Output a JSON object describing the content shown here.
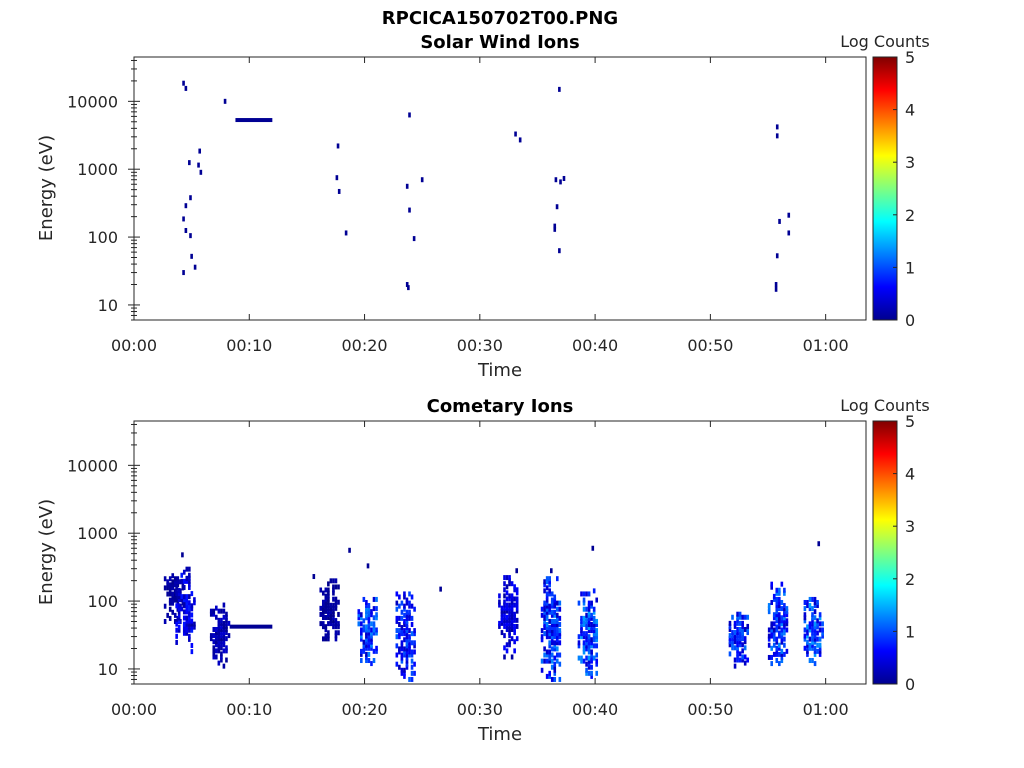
{
  "figure_title": "RPCICA150702T00.PNG",
  "chart_data": [
    {
      "type": "heatmap",
      "title": "Solar Wind Ions",
      "xlabel": "Time",
      "ylabel": "Energy (eV)",
      "xlim_minutes": [
        0,
        63.5
      ],
      "ylim": [
        6,
        45000
      ],
      "yscale": "log",
      "xticks": [
        "00:00",
        "00:10",
        "00:20",
        "00:30",
        "00:40",
        "00:50",
        "01:00"
      ],
      "yticks": [
        "10",
        "100",
        "1000",
        "10000"
      ],
      "colorbar": {
        "label": "Log Counts",
        "range": [
          0,
          5
        ],
        "ticks": [
          "0",
          "1",
          "2",
          "3",
          "4",
          "5"
        ],
        "colormap": "jet"
      },
      "cells": [
        {
          "t": 4.3,
          "e": 18500,
          "v": 0.1
        },
        {
          "t": 4.5,
          "e": 15500,
          "v": 0.1
        },
        {
          "t": 4.8,
          "e": 1250,
          "v": 0.1
        },
        {
          "t": 5.6,
          "e": 1150,
          "v": 0.1
        },
        {
          "t": 5.7,
          "e": 1850,
          "v": 0.1
        },
        {
          "t": 5.8,
          "e": 900,
          "v": 0.1
        },
        {
          "t": 4.3,
          "e": 185,
          "v": 0.1
        },
        {
          "t": 4.5,
          "e": 290,
          "v": 0.1
        },
        {
          "t": 4.9,
          "e": 380,
          "v": 0.1
        },
        {
          "t": 4.5,
          "e": 125,
          "v": 0.1
        },
        {
          "t": 4.9,
          "e": 105,
          "v": 0.1
        },
        {
          "t": 5.0,
          "e": 52,
          "v": 0.1
        },
        {
          "t": 5.3,
          "e": 36,
          "v": 0.1
        },
        {
          "t": 4.3,
          "e": 30,
          "v": 0.1
        },
        {
          "t": 7.9,
          "e": 10000,
          "v": 0.1
        },
        {
          "t": 17.7,
          "e": 2200,
          "v": 0.1
        },
        {
          "t": 17.6,
          "e": 750,
          "v": 0.1
        },
        {
          "t": 17.8,
          "e": 470,
          "v": 0.1
        },
        {
          "t": 18.4,
          "e": 115,
          "v": 0.1
        },
        {
          "t": 23.9,
          "e": 6300,
          "v": 0.1
        },
        {
          "t": 23.7,
          "e": 560,
          "v": 0.1
        },
        {
          "t": 25.0,
          "e": 700,
          "v": 0.1
        },
        {
          "t": 23.9,
          "e": 250,
          "v": 0.1
        },
        {
          "t": 24.3,
          "e": 95,
          "v": 0.1
        },
        {
          "t": 23.7,
          "e": 20,
          "v": 0.1
        },
        {
          "t": 23.8,
          "e": 18,
          "v": 0.1
        },
        {
          "t": 33.1,
          "e": 3300,
          "v": 0.1
        },
        {
          "t": 33.5,
          "e": 2700,
          "v": 0.1
        },
        {
          "t": 36.9,
          "e": 15000,
          "v": 0.1
        },
        {
          "t": 36.6,
          "e": 700,
          "v": 0.1
        },
        {
          "t": 37.0,
          "e": 650,
          "v": 0.1
        },
        {
          "t": 37.3,
          "e": 730,
          "v": 0.1
        },
        {
          "t": 36.7,
          "e": 280,
          "v": 0.1
        },
        {
          "t": 36.5,
          "e": 145,
          "v": 0.1
        },
        {
          "t": 36.5,
          "e": 130,
          "v": 0.1
        },
        {
          "t": 36.9,
          "e": 63,
          "v": 0.1
        },
        {
          "t": 55.8,
          "e": 4200,
          "v": 0.1
        },
        {
          "t": 55.8,
          "e": 3100,
          "v": 0.1
        },
        {
          "t": 56.0,
          "e": 170,
          "v": 0.1
        },
        {
          "t": 56.8,
          "e": 210,
          "v": 0.1
        },
        {
          "t": 56.8,
          "e": 115,
          "v": 0.1
        },
        {
          "t": 55.8,
          "e": 53,
          "v": 0.1
        },
        {
          "t": 55.7,
          "e": 20,
          "v": 0.1
        },
        {
          "t": 55.7,
          "e": 17,
          "v": 0.1
        }
      ],
      "bands": [
        {
          "t0": 8.8,
          "t1": 12.0,
          "e": 5300,
          "v": 0.1
        }
      ]
    },
    {
      "type": "heatmap",
      "title": "Cometary Ions",
      "xlabel": "Time",
      "ylabel": "Energy (eV)",
      "xlim_minutes": [
        0,
        63.5
      ],
      "ylim": [
        6,
        45000
      ],
      "yscale": "log",
      "xticks": [
        "00:00",
        "00:10",
        "00:20",
        "00:30",
        "00:40",
        "00:50",
        "01:00"
      ],
      "yticks": [
        "10",
        "100",
        "1000",
        "10000"
      ],
      "colorbar": {
        "label": "Log Counts",
        "range": [
          0,
          5
        ],
        "ticks": [
          "0",
          "1",
          "2",
          "3",
          "4",
          "5"
        ],
        "colormap": "jet"
      },
      "cells": [
        {
          "t": 18.7,
          "e": 560,
          "v": 0.1
        },
        {
          "t": 39.8,
          "e": 600,
          "v": 0.1
        },
        {
          "t": 59.4,
          "e": 700,
          "v": 0.1
        },
        {
          "t": 20.3,
          "e": 330,
          "v": 0.1
        },
        {
          "t": 15.6,
          "e": 230,
          "v": 0.1
        },
        {
          "t": 26.6,
          "e": 150,
          "v": 0.1
        },
        {
          "t": 4.2,
          "e": 480,
          "v": 0.1
        },
        {
          "t": 33.2,
          "e": 280,
          "v": 0.1
        },
        {
          "t": 36.2,
          "e": 280,
          "v": 0.1
        }
      ],
      "clusters": [
        {
          "t": 3.5,
          "e_lo": 50,
          "e_hi": 250,
          "v": 0.2
        },
        {
          "t": 4.5,
          "e_lo": 18,
          "e_hi": 300,
          "v": 0.6
        },
        {
          "t": 7.5,
          "e_lo": 11,
          "e_hi": 90,
          "v": 0.3
        },
        {
          "t": 17.0,
          "e_lo": 25,
          "e_hi": 200,
          "v": 0.2
        },
        {
          "t": 20.3,
          "e_lo": 12,
          "e_hi": 120,
          "v": 1.0
        },
        {
          "t": 23.6,
          "e_lo": 7,
          "e_hi": 130,
          "v": 0.9
        },
        {
          "t": 32.5,
          "e_lo": 15,
          "e_hi": 230,
          "v": 0.5
        },
        {
          "t": 36.2,
          "e_lo": 7,
          "e_hi": 220,
          "v": 1.0
        },
        {
          "t": 39.4,
          "e_lo": 7,
          "e_hi": 150,
          "v": 1.1
        },
        {
          "t": 52.5,
          "e_lo": 11,
          "e_hi": 70,
          "v": 0.9
        },
        {
          "t": 55.9,
          "e_lo": 12,
          "e_hi": 180,
          "v": 1.0
        },
        {
          "t": 59.0,
          "e_lo": 12,
          "e_hi": 110,
          "v": 1.1
        }
      ],
      "bands": [
        {
          "t0": 8.3,
          "t1": 12.0,
          "e": 42,
          "v": 0.1
        }
      ]
    }
  ]
}
